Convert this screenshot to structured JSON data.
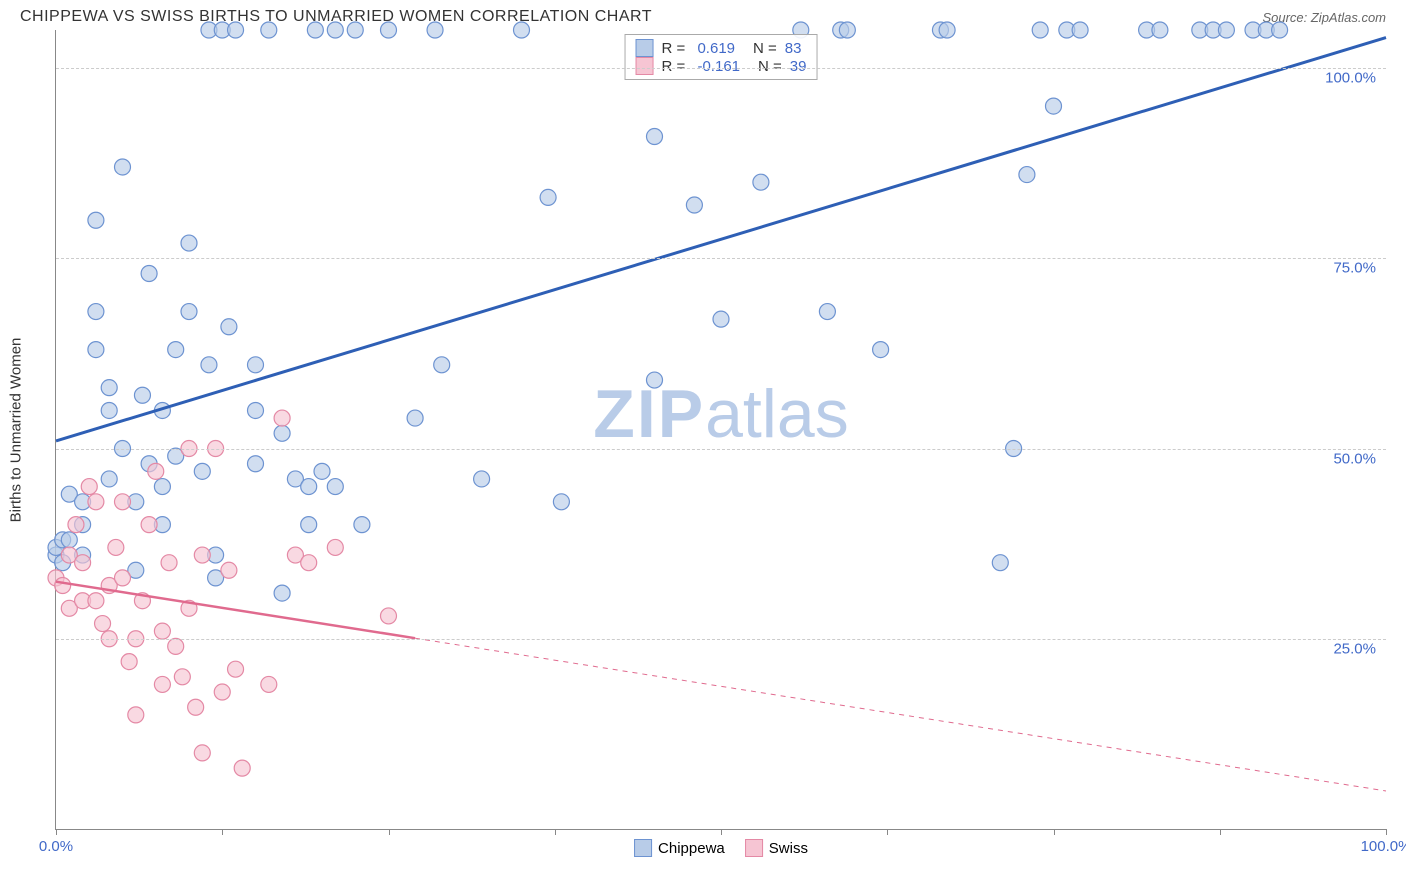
{
  "title": "CHIPPEWA VS SWISS BIRTHS TO UNMARRIED WOMEN CORRELATION CHART",
  "source": "Source: ZipAtlas.com",
  "y_axis_label": "Births to Unmarried Women",
  "watermark": {
    "bold": "ZIP",
    "light": "atlas"
  },
  "chart": {
    "type": "scatter",
    "xlim": [
      0,
      100
    ],
    "ylim": [
      0,
      105
    ],
    "x_ticks": [
      0,
      12.5,
      25,
      37.5,
      50,
      62.5,
      75,
      87.5,
      100
    ],
    "x_tick_labels": {
      "0": "0.0%",
      "100": "100.0%"
    },
    "y_gridlines": [
      25,
      50,
      75,
      100
    ],
    "y_tick_labels": {
      "25": "25.0%",
      "50": "50.0%",
      "75": "75.0%",
      "100": "100.0%"
    },
    "grid_color": "#cccccc",
    "axis_color": "#888888",
    "background_color": "#ffffff",
    "label_fontsize": 15,
    "tick_color": "#4169c8",
    "series": [
      {
        "name": "Chippewa",
        "color_fill": "#b8cce8",
        "color_stroke": "#6d93d1",
        "marker_radius": 8,
        "fill_opacity": 0.65,
        "R": "0.619",
        "N": "83",
        "regression": {
          "x1": 0,
          "y1": 51,
          "x2": 100,
          "y2": 104,
          "color": "#2e5fb5",
          "width": 3,
          "dash": "none"
        },
        "points": [
          [
            0,
            36
          ],
          [
            0,
            37
          ],
          [
            0.5,
            38
          ],
          [
            0.5,
            35
          ],
          [
            1,
            44
          ],
          [
            1,
            38
          ],
          [
            2,
            43
          ],
          [
            2,
            36
          ],
          [
            2,
            40
          ],
          [
            3,
            63
          ],
          [
            3,
            68
          ],
          [
            3,
            80
          ],
          [
            4,
            46
          ],
          [
            4,
            55
          ],
          [
            4,
            58
          ],
          [
            5,
            50
          ],
          [
            5,
            87
          ],
          [
            6,
            34
          ],
          [
            6,
            43
          ],
          [
            6.5,
            57
          ],
          [
            7,
            73
          ],
          [
            7,
            48
          ],
          [
            8,
            55
          ],
          [
            8,
            40
          ],
          [
            8,
            45
          ],
          [
            9,
            63
          ],
          [
            9,
            49
          ],
          [
            10,
            77
          ],
          [
            10,
            68
          ],
          [
            11,
            47
          ],
          [
            11.5,
            61
          ],
          [
            11.5,
            105
          ],
          [
            12,
            36
          ],
          [
            12,
            33
          ],
          [
            12.5,
            105
          ],
          [
            13,
            66
          ],
          [
            13.5,
            105
          ],
          [
            15,
            55
          ],
          [
            15,
            61
          ],
          [
            15,
            48
          ],
          [
            16,
            105
          ],
          [
            17,
            52
          ],
          [
            17,
            31
          ],
          [
            18,
            46
          ],
          [
            19,
            45
          ],
          [
            19,
            40
          ],
          [
            19.5,
            105
          ],
          [
            20,
            47
          ],
          [
            21,
            105
          ],
          [
            21,
            45
          ],
          [
            22.5,
            105
          ],
          [
            23,
            40
          ],
          [
            25,
            105
          ],
          [
            27,
            54
          ],
          [
            28.5,
            105
          ],
          [
            29,
            61
          ],
          [
            32,
            46
          ],
          [
            35,
            105
          ],
          [
            37,
            83
          ],
          [
            38,
            43
          ],
          [
            45,
            59
          ],
          [
            45,
            91
          ],
          [
            48,
            82
          ],
          [
            50,
            67
          ],
          [
            53,
            85
          ],
          [
            56,
            105
          ],
          [
            58,
            68
          ],
          [
            59,
            105
          ],
          [
            59.5,
            105
          ],
          [
            62,
            63
          ],
          [
            66.5,
            105
          ],
          [
            67,
            105
          ],
          [
            71,
            35
          ],
          [
            72,
            50
          ],
          [
            73,
            86
          ],
          [
            74,
            105
          ],
          [
            75,
            95
          ],
          [
            76,
            105
          ],
          [
            77,
            105
          ],
          [
            82,
            105
          ],
          [
            83,
            105
          ],
          [
            86,
            105
          ],
          [
            87,
            105
          ],
          [
            88,
            105
          ],
          [
            90,
            105
          ],
          [
            91,
            105
          ],
          [
            92,
            105
          ]
        ]
      },
      {
        "name": "Swiss",
        "color_fill": "#f6c5d3",
        "color_stroke": "#e489a5",
        "marker_radius": 8,
        "fill_opacity": 0.65,
        "R": "-0.161",
        "N": "39",
        "regression": {
          "x1": 0,
          "y1": 32.5,
          "x2": 100,
          "y2": 5,
          "color": "#e06a8e",
          "width": 2.5,
          "dash": "none",
          "solid_until_x": 27
        },
        "points": [
          [
            0,
            33
          ],
          [
            0.5,
            32
          ],
          [
            1,
            29
          ],
          [
            1,
            36
          ],
          [
            1.5,
            40
          ],
          [
            2,
            30
          ],
          [
            2,
            35
          ],
          [
            2.5,
            45
          ],
          [
            3,
            43
          ],
          [
            3,
            30
          ],
          [
            3.5,
            27
          ],
          [
            4,
            32
          ],
          [
            4,
            25
          ],
          [
            4.5,
            37
          ],
          [
            5,
            33
          ],
          [
            5,
            43
          ],
          [
            5.5,
            22
          ],
          [
            6,
            25
          ],
          [
            6,
            15
          ],
          [
            6.5,
            30
          ],
          [
            7,
            40
          ],
          [
            7.5,
            47
          ],
          [
            8,
            19
          ],
          [
            8,
            26
          ],
          [
            8.5,
            35
          ],
          [
            9,
            24
          ],
          [
            9.5,
            20
          ],
          [
            10,
            50
          ],
          [
            10,
            29
          ],
          [
            10.5,
            16
          ],
          [
            11,
            36
          ],
          [
            11,
            10
          ],
          [
            12,
            50
          ],
          [
            12.5,
            18
          ],
          [
            13,
            34
          ],
          [
            13.5,
            21
          ],
          [
            14,
            8
          ],
          [
            16,
            19
          ],
          [
            17,
            54
          ],
          [
            18,
            36
          ],
          [
            19,
            35
          ],
          [
            21,
            37
          ],
          [
            25,
            28
          ]
        ]
      }
    ],
    "legend_position": "top-center",
    "bottom_legend_items": [
      {
        "label": "Chippewa",
        "fill": "#b8cce8",
        "stroke": "#6d93d1"
      },
      {
        "label": "Swiss",
        "fill": "#f6c5d3",
        "stroke": "#e489a5"
      }
    ]
  }
}
